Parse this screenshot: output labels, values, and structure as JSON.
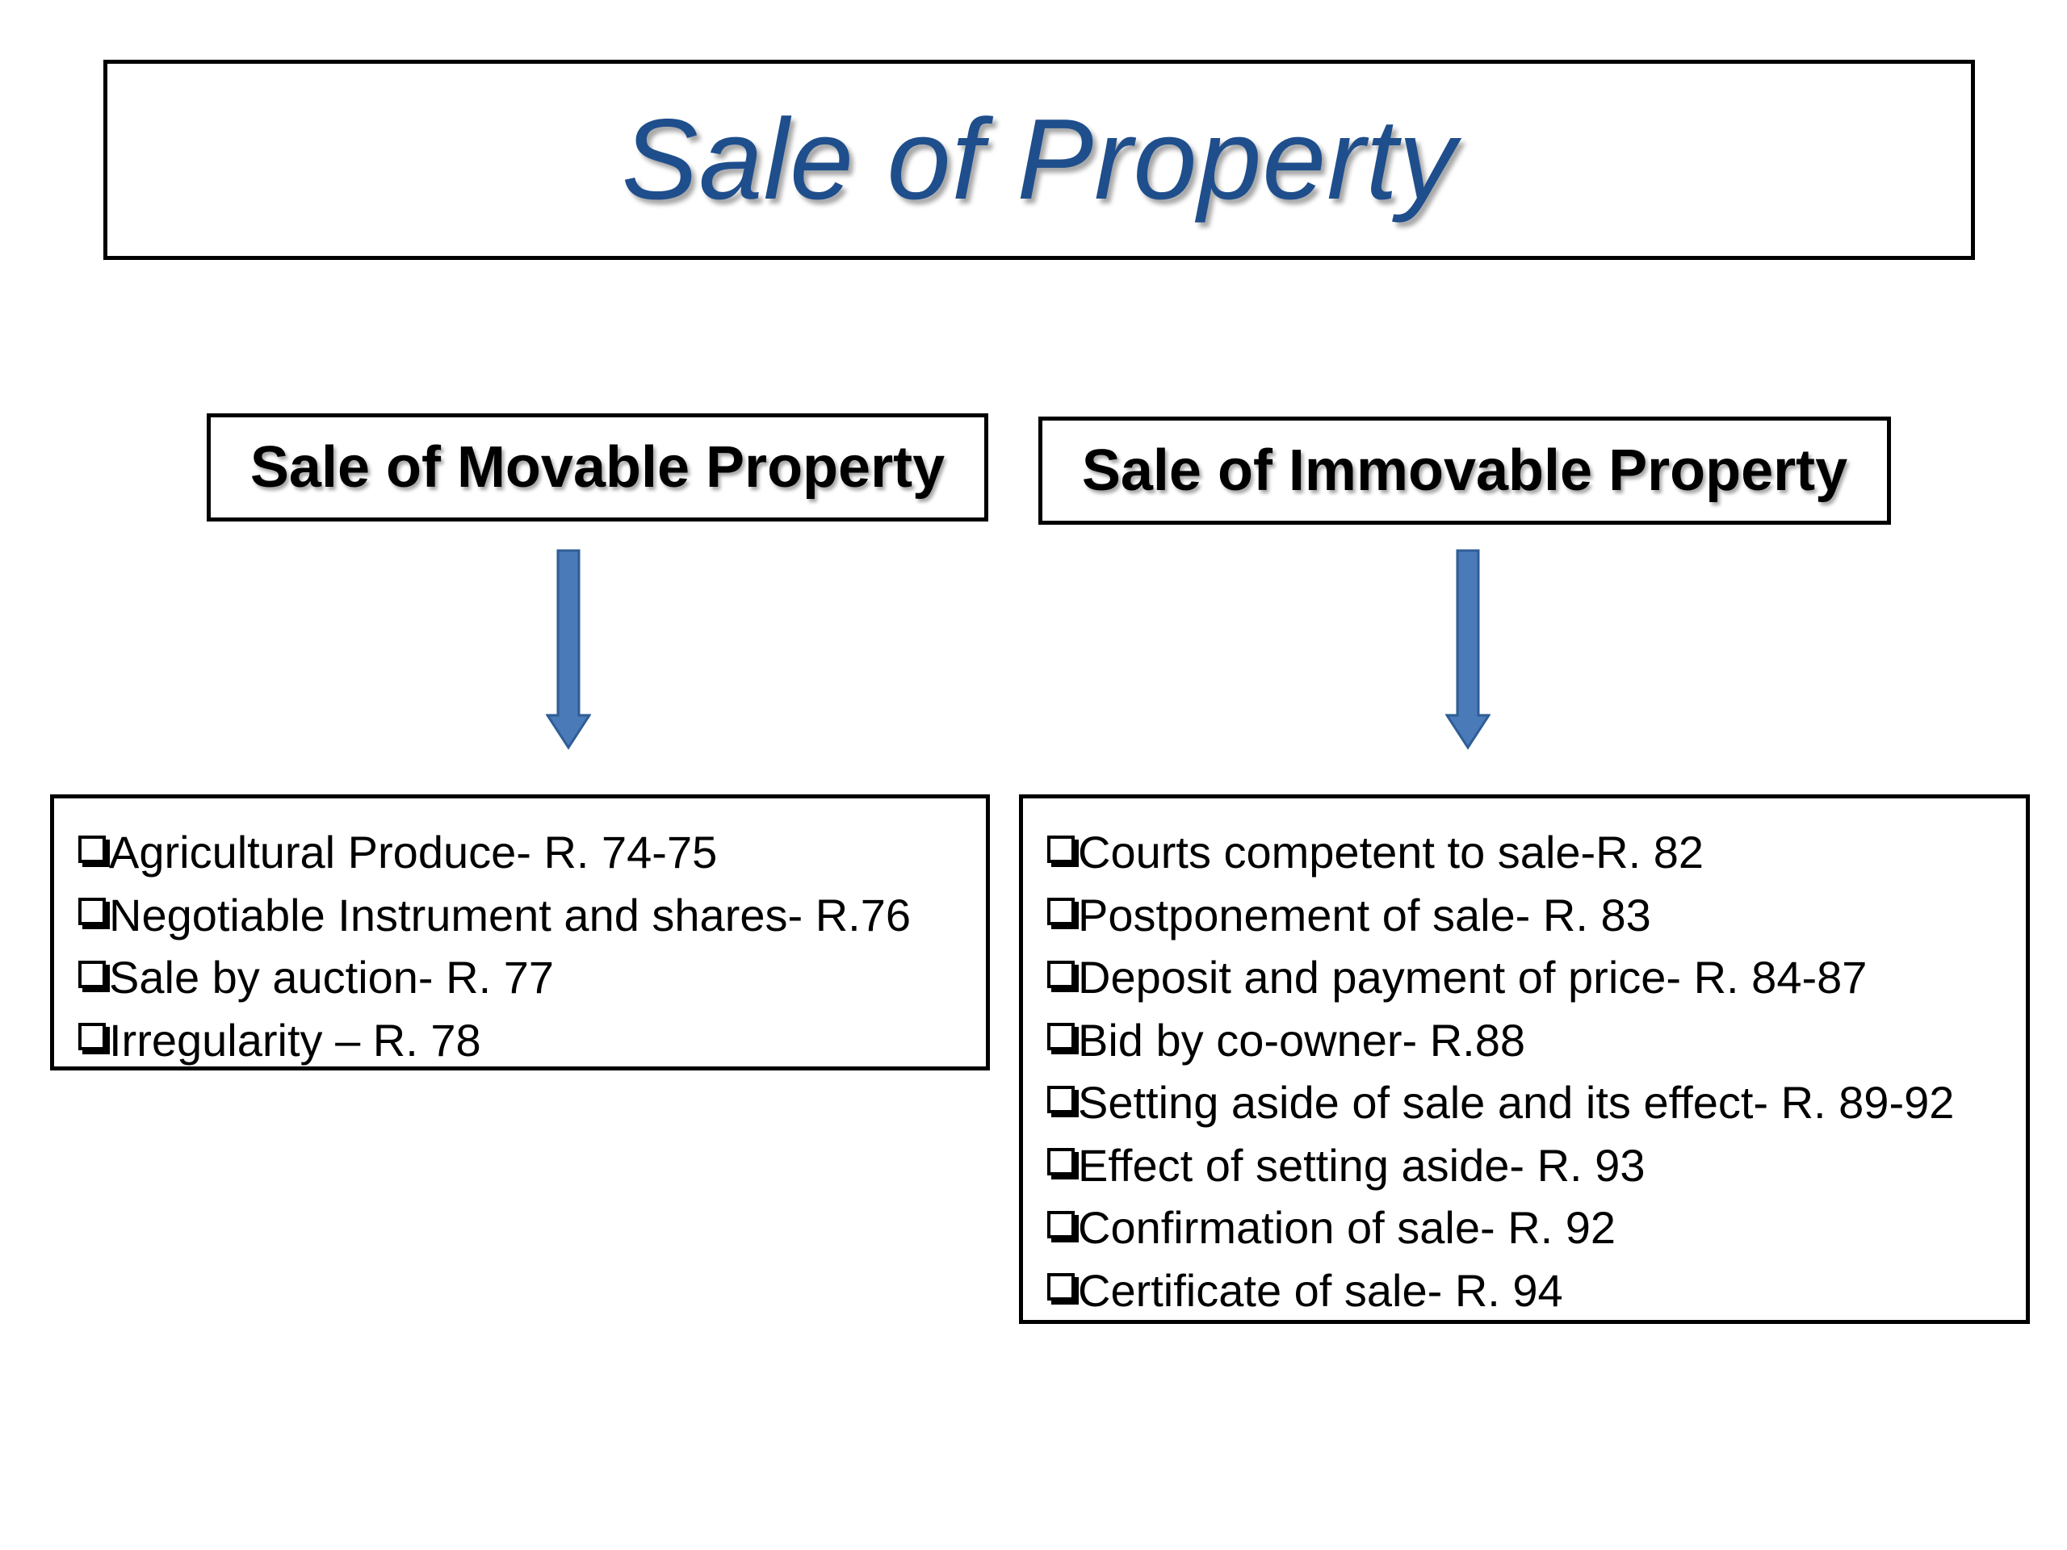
{
  "title": "Sale of Property",
  "colors": {
    "title": "#1f4e8c",
    "arrow": "#4a7ab8",
    "arrow_stroke": "#2f5d96"
  },
  "movable": {
    "heading": "Sale of Movable Property",
    "items": [
      "Agricultural Produce- R. 74-75",
      "Negotiable Instrument and shares- R.76",
      "Sale by auction- R. 77",
      "Irregularity – R. 78"
    ]
  },
  "immovable": {
    "heading": "Sale of Immovable Property",
    "items": [
      "Courts competent to sale-R. 82",
      "Postponement of sale- R. 83",
      "Deposit and payment of price- R. 84-87",
      "Bid by co-owner- R.88",
      "Setting aside of sale and its effect- R. 89-92",
      "Effect of setting aside- R. 93",
      "Confirmation of sale- R. 92",
      "Certificate of sale- R. 94"
    ]
  }
}
